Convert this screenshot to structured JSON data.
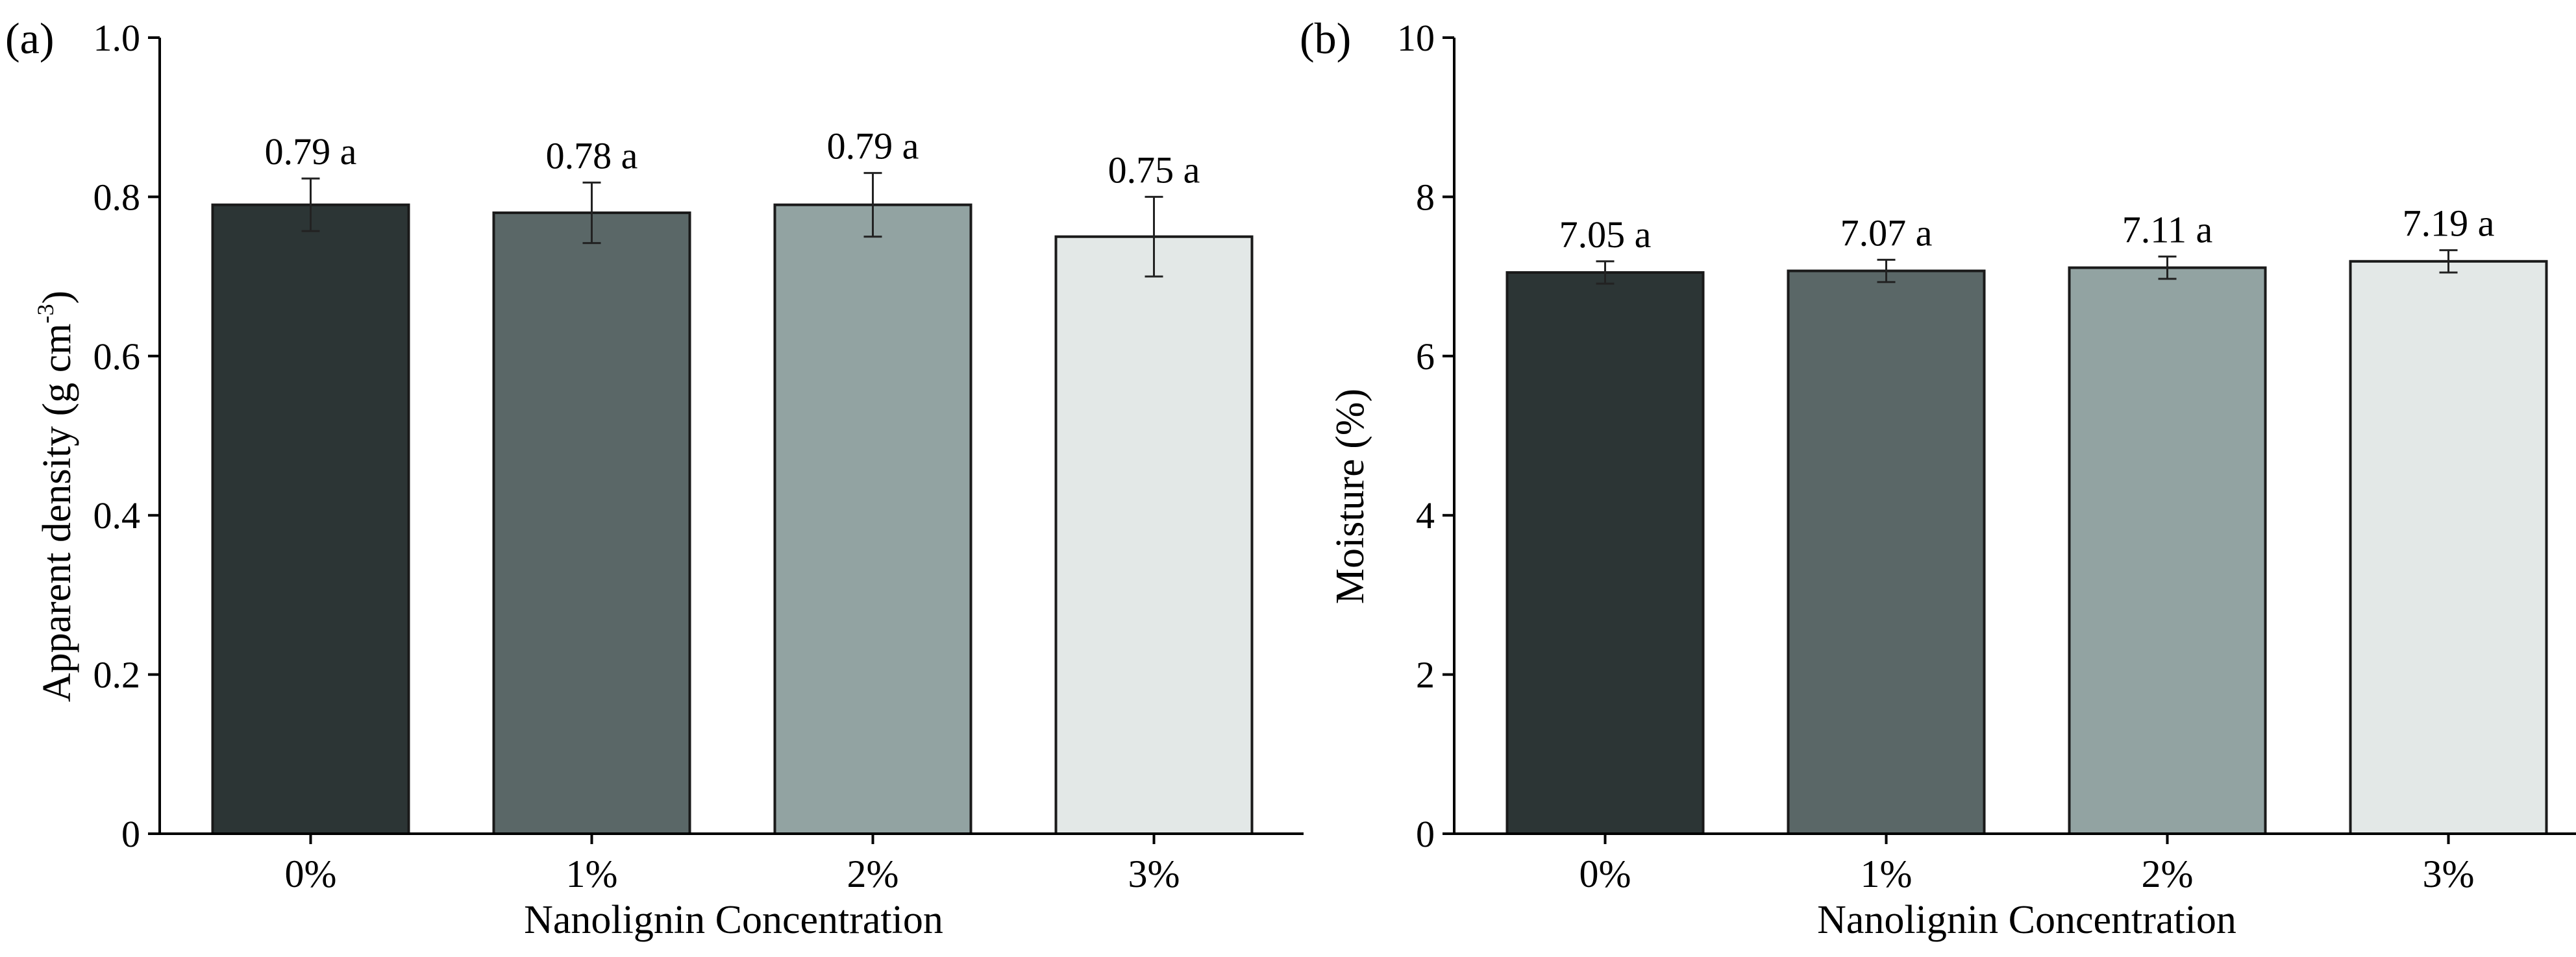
{
  "chart_data": [
    {
      "type": "bar",
      "panel_label": "(a)",
      "title": "",
      "xlabel": "Nanolignin Concentration",
      "ylabel": "Apparent density (g cm",
      "ylabel_sup": "-3",
      "ylabel_close": ")",
      "ylim": [
        0,
        1.0
      ],
      "yticks": [
        "0",
        "0.2",
        "0.4",
        "0.6",
        "0.8",
        "1.0"
      ],
      "ytick_values": [
        0,
        0.2,
        0.4,
        0.6,
        0.8,
        1.0
      ],
      "categories": [
        "0%",
        "1%",
        "2%",
        "3%"
      ],
      "values": [
        0.79,
        0.78,
        0.79,
        0.75
      ],
      "errors": [
        0.033,
        0.038,
        0.04,
        0.05
      ],
      "bar_labels": [
        "0.79 a",
        "0.78 a",
        "0.79 a",
        "0.75 a"
      ],
      "colors": [
        "#2c3535",
        "#5a6767",
        "#92a3a2",
        "#e3e8e7"
      ],
      "grid": false
    },
    {
      "type": "bar",
      "panel_label": "(b)",
      "title": "",
      "xlabel": "Nanolignin Concentration",
      "ylabel": "Moisture (%)",
      "ylim": [
        0,
        10
      ],
      "yticks": [
        "0",
        "2",
        "4",
        "6",
        "8",
        "10"
      ],
      "ytick_values": [
        0,
        2,
        4,
        6,
        8,
        10
      ],
      "categories": [
        "0%",
        "1%",
        "2%",
        "3%"
      ],
      "values": [
        7.05,
        7.07,
        7.11,
        7.19
      ],
      "errors": [
        0.14,
        0.14,
        0.14,
        0.14
      ],
      "bar_labels": [
        "7.05 a",
        "7.07 a",
        "7.11 a",
        "7.19 a"
      ],
      "colors": [
        "#2c3535",
        "#5a6767",
        "#92a3a2",
        "#e3e8e7"
      ],
      "grid": false
    }
  ]
}
